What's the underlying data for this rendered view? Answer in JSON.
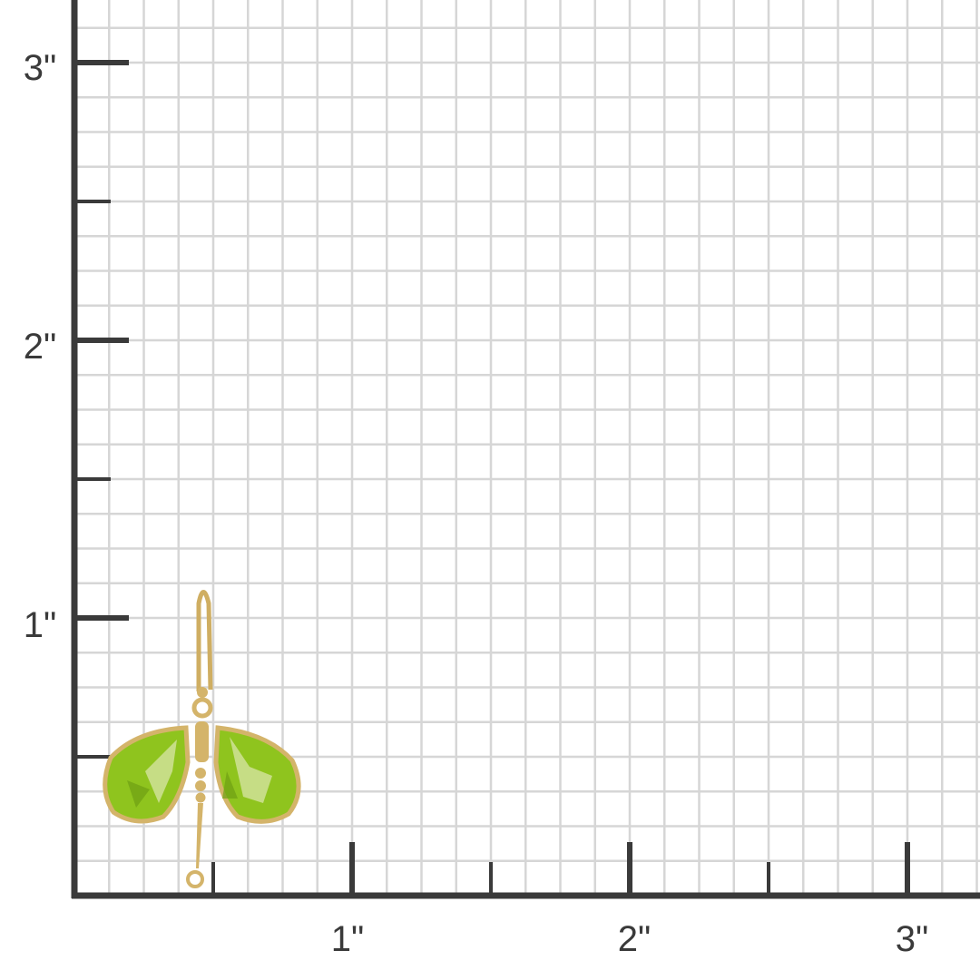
{
  "ruler": {
    "unit_label_suffix": "\"",
    "x_labels": [
      "1\"",
      "2\"",
      "3\""
    ],
    "y_labels": [
      "1\"",
      "2\"",
      "3\""
    ],
    "grid_subdivisions_per_inch": 8,
    "colors": {
      "axis": "#3a3a3a",
      "grid": "#d6d6d6",
      "background": "#ffffff"
    }
  },
  "product": {
    "type": "earring",
    "height_inches": 1.1,
    "width_inches": 0.72,
    "colors": {
      "metal": "#d4b46a",
      "stone": "#8fc41e",
      "stone_highlight": "#d8e6a8"
    }
  }
}
